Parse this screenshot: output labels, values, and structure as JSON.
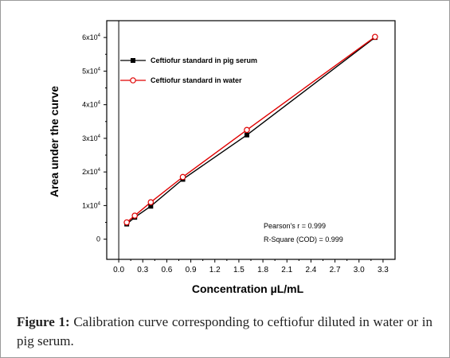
{
  "chart_data": {
    "type": "line",
    "xlabel": "Concentration µL/mL",
    "ylabel": "Area under the curve",
    "xlim": [
      -0.15,
      3.45
    ],
    "ylim": [
      -6000,
      65000
    ],
    "x_ticks": [
      "0.0",
      "0.3",
      "0.6",
      "0.9",
      "1.2",
      "1.5",
      "1.8",
      "2.1",
      "2.4",
      "2.7",
      "3.0",
      "3.3"
    ],
    "x_tick_values": [
      0,
      0.3,
      0.6,
      0.9,
      1.2,
      1.5,
      1.8,
      2.1,
      2.4,
      2.7,
      3.0,
      3.3
    ],
    "y_tick_values": [
      0,
      10000,
      20000,
      30000,
      40000,
      50000,
      60000
    ],
    "y_ticks": [
      {
        "base": "0",
        "exp": ""
      },
      {
        "base": "1x10",
        "exp": "4"
      },
      {
        "base": "2x10",
        "exp": "4"
      },
      {
        "base": "3x10",
        "exp": "4"
      },
      {
        "base": "4x10",
        "exp": "4"
      },
      {
        "base": "5x10",
        "exp": "4"
      },
      {
        "base": "6x10",
        "exp": "4"
      }
    ],
    "series": [
      {
        "name": "Ceftiofur standard in pig serum",
        "color": "#000000",
        "marker": "filled-square",
        "x": [
          0.1,
          0.2,
          0.4,
          0.8,
          1.6,
          3.2
        ],
        "y": [
          4500,
          6500,
          9800,
          17800,
          31000,
          60000
        ]
      },
      {
        "name": "Ceftiofur standard in water",
        "color": "#e00000",
        "marker": "open-circle",
        "x": [
          0.1,
          0.2,
          0.4,
          0.8,
          1.6,
          3.2
        ],
        "y": [
          5000,
          7000,
          11000,
          18500,
          32500,
          60200
        ]
      }
    ],
    "annotations": [
      "Pearson's r = 0.999",
      "R-Square (COD) = 0.999"
    ],
    "legend_position": "top-left"
  },
  "caption": {
    "label": "Figure 1:",
    "text": "Calibration curve corresponding to ceftiofur diluted in water or in pig serum."
  }
}
